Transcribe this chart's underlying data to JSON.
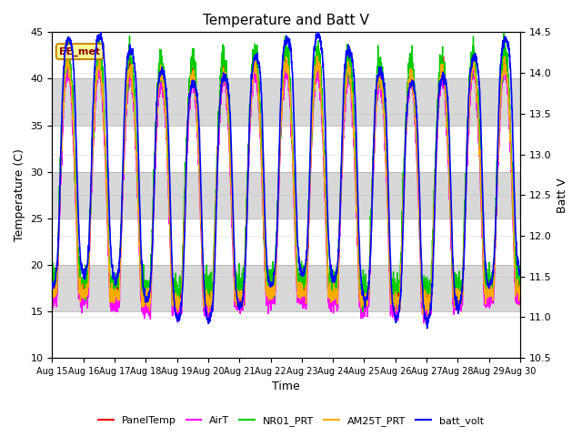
{
  "title": "Temperature and Batt V",
  "xlabel": "Time",
  "ylabel_left": "Temperature (C)",
  "ylabel_right": "Batt V",
  "annotation": "EE_met",
  "xtick_labels": [
    "Aug 15",
    "Aug 16",
    "Aug 17",
    "Aug 18",
    "Aug 19",
    "Aug 20",
    "Aug 21",
    "Aug 22",
    "Aug 23",
    "Aug 24",
    "Aug 25",
    "Aug 26",
    "Aug 27",
    "Aug 28",
    "Aug 29",
    "Aug 30"
  ],
  "ylim_left": [
    10,
    45
  ],
  "ylim_right": [
    10.5,
    14.5
  ],
  "yticks_left": [
    10,
    15,
    20,
    25,
    30,
    35,
    40,
    45
  ],
  "yticks_right": [
    10.5,
    11.0,
    11.5,
    12.0,
    12.5,
    13.0,
    13.5,
    14.0,
    14.5
  ],
  "colors": {
    "PanelTemp": "#ff0000",
    "AirT": "#ff00ff",
    "NR01_PRT": "#00cc00",
    "AM25T_PRT": "#ffaa00",
    "batt_volt": "#0000ff"
  },
  "legend_labels": [
    "PanelTemp",
    "AirT",
    "NR01_PRT",
    "AM25T_PRT",
    "batt_volt"
  ],
  "bg_color": "#e8e8e8",
  "band_color_light": "#ffffff",
  "band_color_dark": "#d8d8d8",
  "n_days": 15,
  "points_per_day": 144,
  "temp_min": 16.5,
  "temp_max": 41.0,
  "batt_min": 11.0,
  "batt_max": 14.2,
  "title_fontsize": 11,
  "label_fontsize": 9,
  "tick_fontsize": 8,
  "xtick_fontsize": 7
}
